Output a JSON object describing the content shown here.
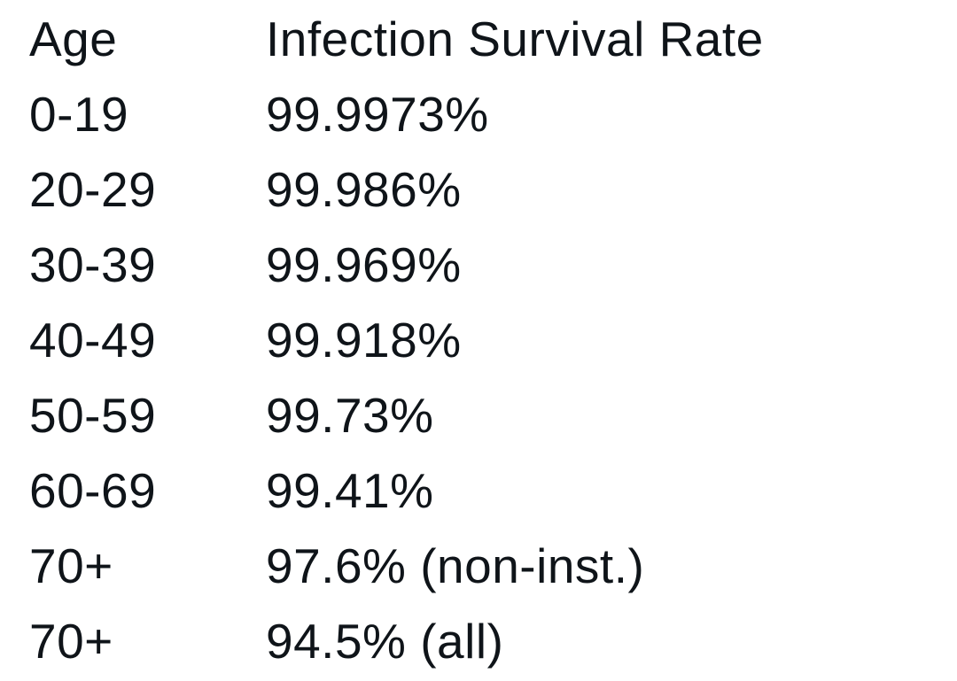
{
  "table": {
    "headers": {
      "age": "Age",
      "rate": "Infection Survival Rate"
    },
    "rows": [
      {
        "age": "0-19",
        "rate": "99.9973%"
      },
      {
        "age": "20-29",
        "rate": "99.986%"
      },
      {
        "age": "30-39",
        "rate": "99.969%"
      },
      {
        "age": "40-49",
        "rate": "99.918%"
      },
      {
        "age": "50-59",
        "rate": "99.73%"
      },
      {
        "age": "60-69",
        "rate": "99.41%"
      },
      {
        "age": "70+",
        "rate": "97.6% (non-inst.)"
      },
      {
        "age": "70+",
        "rate": "94.5% (all)"
      }
    ],
    "text_color": "#0f1419",
    "background_color": "#ffffff"
  }
}
